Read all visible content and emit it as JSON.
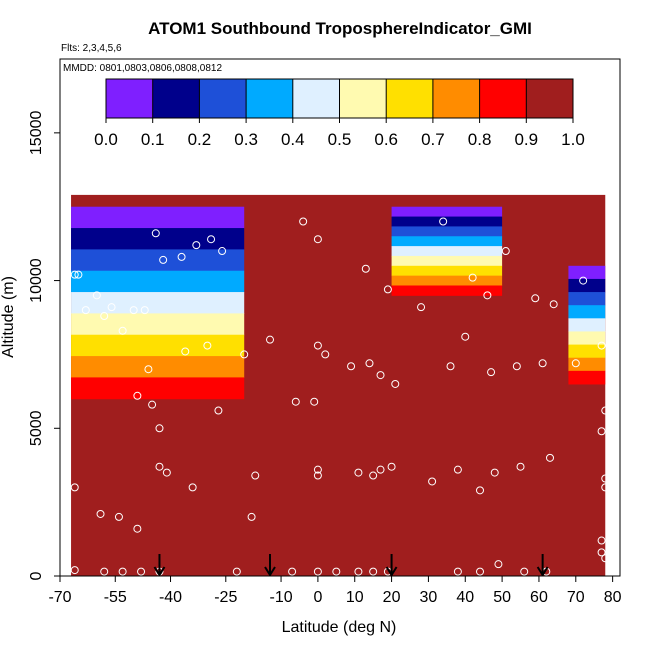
{
  "chart_data": {
    "type": "heatmap",
    "title": "ATOM1 Southbound TroposphereIndicator_GMI",
    "flights_note": "Flts: 2,3,4,5,6",
    "dates_note": "MMDD: 0801,0803,0806,0808,0812",
    "xlabel": "Latitude (deg N)",
    "ylabel": "Altitude (m)",
    "xlim": [
      -70,
      82
    ],
    "ylim": [
      0,
      17500
    ],
    "x_ticks": [
      -70,
      -55,
      -40,
      -25,
      -10,
      0,
      10,
      20,
      30,
      40,
      50,
      60,
      70,
      80
    ],
    "x_tick_labels": [
      "-70",
      "-55",
      "-40",
      "-25",
      "-10",
      "0",
      "10",
      "20",
      "30",
      "40",
      "50",
      "60",
      "70",
      "80"
    ],
    "y_ticks": [
      0,
      5000,
      10000,
      15000
    ],
    "y_tick_labels": [
      "0",
      "5000",
      "10000",
      "15000"
    ],
    "colorbar": {
      "range": [
        0.0,
        1.0
      ],
      "tick_labels": [
        "0.0",
        "0.1",
        "0.2",
        "0.3",
        "0.4",
        "0.5",
        "0.6",
        "0.7",
        "0.8",
        "0.9",
        "1.0"
      ],
      "colors": [
        "#7f1fff",
        "#00008b",
        "#1e50d8",
        "#00aaff",
        "#dff0ff",
        "#fffab0",
        "#ffe000",
        "#ff8c00",
        "#ff0000",
        "#a01e1e"
      ]
    },
    "field_color": "#a01e1e",
    "domain_lat_range": [
      -67,
      78
    ],
    "domain_top_altitude": 12900,
    "low_value_regions": [
      {
        "name": "southern-tropopause-fold",
        "lat_range": [
          -67,
          -20
        ],
        "alt_range": [
          6000,
          12500
        ],
        "min_value": 0.0
      },
      {
        "name": "tropical-upper-pocket",
        "lat_range": [
          20,
          50
        ],
        "alt_range": [
          9500,
          12500
        ],
        "min_value": 0.1
      },
      {
        "name": "northern-upper-edge",
        "lat_range": [
          68,
          78
        ],
        "alt_range": [
          6500,
          10500
        ],
        "min_value": 0.0
      }
    ],
    "sample_points": [
      {
        "lat": -66,
        "alt": 10200
      },
      {
        "lat": -65,
        "alt": 10200
      },
      {
        "lat": -63,
        "alt": 9000
      },
      {
        "lat": -60,
        "alt": 9500
      },
      {
        "lat": -58,
        "alt": 8800
      },
      {
        "lat": -56,
        "alt": 9100
      },
      {
        "lat": -53,
        "alt": 8300
      },
      {
        "lat": -50,
        "alt": 9000
      },
      {
        "lat": -47,
        "alt": 9000
      },
      {
        "lat": -44,
        "alt": 11600
      },
      {
        "lat": -42,
        "alt": 10700
      },
      {
        "lat": -37,
        "alt": 10800
      },
      {
        "lat": -33,
        "alt": 11200
      },
      {
        "lat": -29,
        "alt": 11400
      },
      {
        "lat": -26,
        "alt": 11000
      },
      {
        "lat": -49,
        "alt": 6100
      },
      {
        "lat": -46,
        "alt": 7000
      },
      {
        "lat": -45,
        "alt": 5800
      },
      {
        "lat": -43,
        "alt": 5000
      },
      {
        "lat": -43,
        "alt": 3700
      },
      {
        "lat": -41,
        "alt": 3500
      },
      {
        "lat": -36,
        "alt": 7600
      },
      {
        "lat": -34,
        "alt": 3000
      },
      {
        "lat": -30,
        "alt": 7800
      },
      {
        "lat": -27,
        "alt": 5600
      },
      {
        "lat": -20,
        "alt": 7500
      },
      {
        "lat": -18,
        "alt": 2000
      },
      {
        "lat": -17,
        "alt": 3400
      },
      {
        "lat": -13,
        "alt": 8000
      },
      {
        "lat": -4,
        "alt": 12000
      },
      {
        "lat": -6,
        "alt": 5900
      },
      {
        "lat": -1,
        "alt": 5900
      },
      {
        "lat": 0,
        "alt": 11400
      },
      {
        "lat": 0,
        "alt": 7800
      },
      {
        "lat": 2,
        "alt": 7500
      },
      {
        "lat": 0,
        "alt": 3600
      },
      {
        "lat": 0,
        "alt": 3400
      },
      {
        "lat": 9,
        "alt": 7100
      },
      {
        "lat": 11,
        "alt": 3500
      },
      {
        "lat": 13,
        "alt": 10400
      },
      {
        "lat": 14,
        "alt": 7200
      },
      {
        "lat": 15,
        "alt": 3400
      },
      {
        "lat": 17,
        "alt": 3600
      },
      {
        "lat": 17,
        "alt": 6800
      },
      {
        "lat": 19,
        "alt": 9700
      },
      {
        "lat": 21,
        "alt": 6500
      },
      {
        "lat": 20,
        "alt": 3700
      },
      {
        "lat": 28,
        "alt": 9100
      },
      {
        "lat": 31,
        "alt": 3200
      },
      {
        "lat": 34,
        "alt": 12000
      },
      {
        "lat": 36,
        "alt": 7100
      },
      {
        "lat": 38,
        "alt": 3600
      },
      {
        "lat": 40,
        "alt": 8100
      },
      {
        "lat": 42,
        "alt": 10100
      },
      {
        "lat": 44,
        "alt": 2900
      },
      {
        "lat": 46,
        "alt": 9500
      },
      {
        "lat": 47,
        "alt": 6900
      },
      {
        "lat": 48,
        "alt": 3500
      },
      {
        "lat": 51,
        "alt": 11000
      },
      {
        "lat": 54,
        "alt": 7100
      },
      {
        "lat": 55,
        "alt": 3700
      },
      {
        "lat": 59,
        "alt": 9400
      },
      {
        "lat": 61,
        "alt": 7200
      },
      {
        "lat": 63,
        "alt": 4000
      },
      {
        "lat": 64,
        "alt": 9200
      },
      {
        "lat": 70,
        "alt": 7200
      },
      {
        "lat": 72,
        "alt": 10000
      },
      {
        "lat": 77,
        "alt": 7800
      },
      {
        "lat": 78,
        "alt": 5600
      },
      {
        "lat": 77,
        "alt": 4900
      },
      {
        "lat": 78,
        "alt": 3300
      },
      {
        "lat": 78,
        "alt": 3000
      },
      {
        "lat": 77,
        "alt": 1200
      },
      {
        "lat": 77,
        "alt": 800
      },
      {
        "lat": 78,
        "alt": 600
      },
      {
        "lat": -66,
        "alt": 3000
      },
      {
        "lat": -59,
        "alt": 2100
      },
      {
        "lat": -54,
        "alt": 2000
      },
      {
        "lat": -49,
        "alt": 1600
      },
      {
        "lat": -66,
        "alt": 200
      },
      {
        "lat": -58,
        "alt": 150
      },
      {
        "lat": -53,
        "alt": 150
      },
      {
        "lat": -48,
        "alt": 150
      },
      {
        "lat": -43,
        "alt": 150
      },
      {
        "lat": -22,
        "alt": 150
      },
      {
        "lat": -7,
        "alt": 150
      },
      {
        "lat": 0,
        "alt": 150
      },
      {
        "lat": 5,
        "alt": 150
      },
      {
        "lat": 11,
        "alt": 150
      },
      {
        "lat": 15,
        "alt": 150
      },
      {
        "lat": 19,
        "alt": 150
      },
      {
        "lat": 38,
        "alt": 150
      },
      {
        "lat": 44,
        "alt": 150
      },
      {
        "lat": 49,
        "alt": 400
      },
      {
        "lat": 56,
        "alt": 150
      },
      {
        "lat": 62,
        "alt": 150
      }
    ],
    "arrow_markers_lat": [
      -43,
      -13,
      20,
      61
    ]
  }
}
